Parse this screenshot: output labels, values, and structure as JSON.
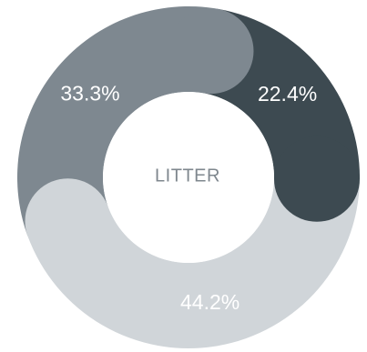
{
  "chart_data": {
    "type": "pie",
    "style": "donut-rounded",
    "center_label": "LITTER",
    "slices": [
      {
        "label": "22.4%",
        "value": 22.4,
        "color": "#3d4a51"
      },
      {
        "label": "44.2%",
        "value": 44.2,
        "color": "#d0d5d9"
      },
      {
        "label": "33.3%",
        "value": 33.3,
        "color": "#7e8890"
      }
    ]
  }
}
